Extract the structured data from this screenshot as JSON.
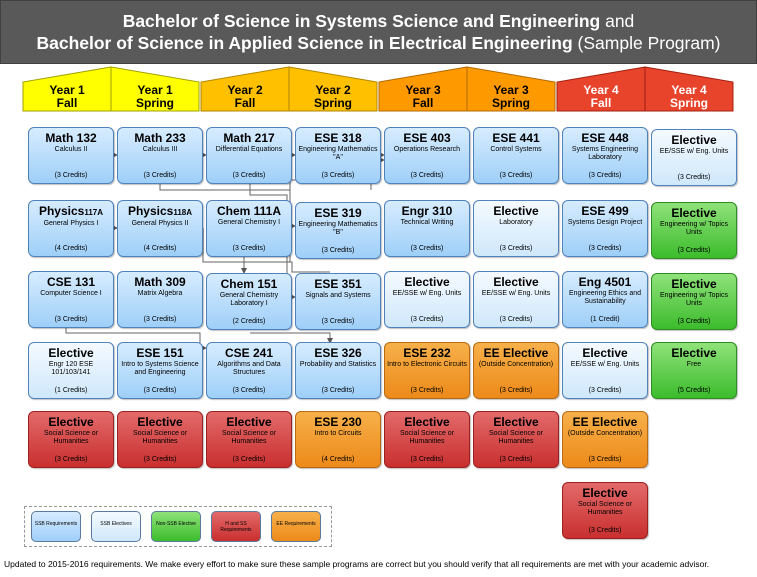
{
  "title": {
    "line1_bold": "Bachelor of Science in Systems Science and Engineering",
    "line1_normal": "and",
    "line2_bold": "Bachelor of Science in Applied Science in Electrical Engineering",
    "line2_normal": "(Sample Program)"
  },
  "semesters": [
    {
      "year": "Year 1",
      "term": "Fall"
    },
    {
      "year": "Year 1",
      "term": "Spring"
    },
    {
      "year": "Year 2",
      "term": "Fall"
    },
    {
      "year": "Year 2",
      "term": "Spring"
    },
    {
      "year": "Year 3",
      "term": "Fall"
    },
    {
      "year": "Year 3",
      "term": "Spring"
    },
    {
      "year": "Year 4",
      "term": "Fall"
    },
    {
      "year": "Year 4",
      "term": "Spring"
    }
  ],
  "colors": {
    "year1": "#ffff00",
    "year2": "#ffc000",
    "year3": "#ff9900",
    "year4": "#e8432b",
    "title_bar": "#595959",
    "ssb_requirement": "#9ecff8",
    "ssb_elective": "#cfe8fb",
    "non_ssb_elective": "#3cbc2c",
    "h_and_ss_requirement": "#c92f2f",
    "ee_requirement": "#ed8a1a"
  },
  "courses": {
    "c0": [
      {
        "code": "Math 132",
        "name": "Calculus II",
        "credits": "(3 Credits)",
        "kind": "ssb"
      },
      {
        "code": "Physics",
        "code_suffix": "117A",
        "name": "General Physics I",
        "credits": "(4 Credits)",
        "kind": "ssb"
      },
      {
        "code": "CSE 131",
        "name": "Computer Science I",
        "credits": "(3 Credits)",
        "kind": "ssb"
      },
      {
        "code": "Elective",
        "name": "Engr 120 ESE 101/103/141",
        "credits": "(1 Credits)",
        "kind": "sse"
      },
      {
        "code": "Elective",
        "name": "Social Science or Humanities",
        "credits": "(3 Credits)",
        "kind": "red"
      }
    ],
    "c1": [
      {
        "code": "Math 233",
        "name": "Calculus III",
        "credits": "(3 Credits)",
        "kind": "ssb"
      },
      {
        "code": "Physics",
        "code_suffix": "118A",
        "name": "General Physics II",
        "credits": "(4 Credits)",
        "kind": "ssb"
      },
      {
        "code": "Math 309",
        "name": "Matrix Algebra",
        "credits": "(3 Credits)",
        "kind": "ssb"
      },
      {
        "code": "ESE 151",
        "name": "Intro to Systems Science and Engineering",
        "credits": "(3 Credits)",
        "kind": "ssb"
      },
      {
        "code": "Elective",
        "name": "Social Science or Humanities",
        "credits": "(3 Credits)",
        "kind": "red"
      }
    ],
    "c2": [
      {
        "code": "Math 217",
        "name": "Differential Equations",
        "credits": "(3 Credits)",
        "kind": "ssb"
      },
      {
        "code": "Chem 111A",
        "name": "General Chemistry I",
        "credits": "(3 Credits)",
        "kind": "ssb"
      },
      {
        "code": "Chem 151",
        "name": "General Chemistry Laboratory I",
        "credits": "(2 Credits)",
        "kind": "ssb"
      },
      {
        "code": "CSE 241",
        "name": "Algorithms and Data Structures",
        "credits": "(3 Credits)",
        "kind": "ssb"
      },
      {
        "code": "Elective",
        "name": "Social Science or Humanities",
        "credits": "(3 Credits)",
        "kind": "red"
      }
    ],
    "c3": [
      {
        "code": "ESE 318",
        "name": "Engineering Mathematics \"A\"",
        "credits": "(3 Credits)",
        "kind": "ssb"
      },
      {
        "code": "ESE 319",
        "name": "Engineering Mathematics \"B\"",
        "credits": "(3 Credits)",
        "kind": "ssb"
      },
      {
        "code": "ESE 351",
        "name": "Signals and Systems",
        "credits": "(3 Credits)",
        "kind": "ssb"
      },
      {
        "code": "ESE 326",
        "name": "Probability and Statistics",
        "credits": "(3 Credits)",
        "kind": "ssb"
      },
      {
        "code": "ESE 230",
        "name": "Intro to Circuits",
        "credits": "(4 Credits)",
        "kind": "org"
      }
    ],
    "c4": [
      {
        "code": "ESE 403",
        "name": "Operations Research",
        "credits": "(3 Credits)",
        "kind": "ssb"
      },
      {
        "code": "Engr 310",
        "name": "Technical Writing",
        "credits": "(3 Credits)",
        "kind": "ssb"
      },
      {
        "code": "Elective",
        "name": "EE/SSE w/ Eng. Units",
        "credits": "(3 Credits)",
        "kind": "sse"
      },
      {
        "code": "ESE 232",
        "name": "Intro to Electronic Circuits",
        "credits": "(3 Credits)",
        "kind": "org"
      },
      {
        "code": "Elective",
        "name": "Social Science or Humanities",
        "credits": "(3 Credits)",
        "kind": "red"
      }
    ],
    "c5": [
      {
        "code": "ESE 441",
        "name": "Control Systems",
        "credits": "(3 Credits)",
        "kind": "ssb"
      },
      {
        "code": "Elective",
        "name": "Laboratory",
        "credits": "(3 Credits)",
        "kind": "sse"
      },
      {
        "code": "Elective",
        "name": "EE/SSE w/ Eng. Units",
        "credits": "(3 Credits)",
        "kind": "sse"
      },
      {
        "code": "EE Elective",
        "name": "(Outside Concentration)",
        "credits": "(3 Credits)",
        "kind": "org"
      },
      {
        "code": "Elective",
        "name": "Social Science or Humanities",
        "credits": "(3 Credits)",
        "kind": "red"
      }
    ],
    "c6": [
      {
        "code": "ESE 448",
        "name": "Systems Engineering Laboratory",
        "credits": "(3 Credits)",
        "kind": "ssb"
      },
      {
        "code": "ESE 499",
        "name": "Systems Design Project",
        "credits": "(3 Credits)",
        "kind": "ssb"
      },
      {
        "code": "Eng 4501",
        "name": "Engineering Ethics and Sustainability",
        "credits": "(1 Credit)",
        "kind": "ssb"
      },
      {
        "code": "Elective",
        "name": "EE/SSE w/ Eng. Units",
        "credits": "(3 Credits)",
        "kind": "sse"
      },
      {
        "code": "EE Elective",
        "name": "(Outside Concentration)",
        "credits": "(3 Credits)",
        "kind": "org"
      },
      {
        "code": "Elective",
        "name": "Social Science or Humanities",
        "credits": "(3 Credits)",
        "kind": "red"
      }
    ],
    "c7": [
      {
        "code": "Elective",
        "name": "EE/SSE w/ Eng. Units",
        "credits": "(3 Credits)",
        "kind": "sse"
      },
      {
        "code": "Elective",
        "name": "Engineering w/ Topics Units",
        "credits": "(3 Credits)",
        "kind": "grn"
      },
      {
        "code": "Elective",
        "name": "Engineering w/ Topics Units",
        "credits": "(3 Credits)",
        "kind": "grn"
      },
      {
        "code": "Elective",
        "name": "Free",
        "credits": "(5 Credits)",
        "kind": "grn"
      }
    ]
  },
  "legend": [
    {
      "label": "SSB Requirements",
      "kind": "ssb"
    },
    {
      "label": "SSB Electives",
      "kind": "sse"
    },
    {
      "label": "Non-SSB Elective",
      "kind": "grn"
    },
    {
      "label": "H and SS Requirements",
      "kind": "red"
    },
    {
      "label": "EE Requirements",
      "kind": "org"
    }
  ],
  "footnote": "Updated to 2015-2016 requirements. We make every effort to make sure these sample programs are correct but you should verify that all requirements are met with your academic advisor."
}
